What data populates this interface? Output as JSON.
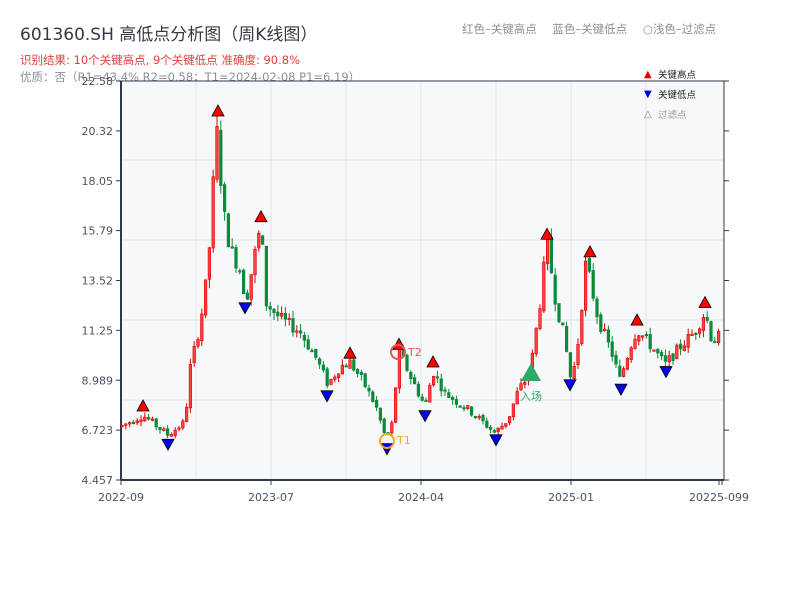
{
  "header": {
    "title": "601360.SH 高低点分析图（周K线图）",
    "result_line": "识别结果: 10个关键高点, 9个关键低点   准确度: 90.8%",
    "quality_line": "优质：否（R1=43.4%  R2=0.58；T1=2024-02-08 P1=6.19）"
  },
  "top_legend": {
    "red": "红色–关键高点",
    "blue": "蓝色–关键低点",
    "light": "○浅色–过滤点"
  },
  "plot_legend": [
    {
      "symbol": "▲",
      "label": "关键高点",
      "color": "#e00000"
    },
    {
      "symbol": "▼",
      "label": "关键低点",
      "color": "#0000e0"
    },
    {
      "symbol": "△",
      "label": "过滤点",
      "color": "#999999"
    }
  ],
  "colors": {
    "up": "#e00000",
    "down": "#0a8a3a",
    "high_marker": "#ff0000",
    "low_marker": "#0000ee",
    "t1": "#f5a623",
    "t2": "#e8554e",
    "entry": "#2eaa66",
    "grid": "#e1e4e8",
    "plot_bg": "#f7f8fa",
    "axis": "#2c3a4a"
  },
  "chart_data": {
    "type": "candlestick",
    "title": "601360.SH 高低点分析图（周K线图）",
    "yticks": [
      "22.58",
      "20.32",
      "18.05",
      "15.79",
      "13.52",
      "11.25",
      "8.989",
      "6.723",
      "4.457"
    ],
    "ylim": [
      4.457,
      22.58
    ],
    "xticks": [
      "2022-09",
      "2023-07",
      "2024-04",
      "2025-01",
      "2025-09"
    ],
    "x_overlap_label": "20225-099",
    "grid": true,
    "key_highs": [
      {
        "date": "2022-10",
        "price": 7.5
      },
      {
        "date": "2023-02",
        "price": 21.0
      },
      {
        "date": "2023-05",
        "price": 16.0
      },
      {
        "date": "2023-10",
        "price": 9.9
      },
      {
        "date": "2024-02",
        "price": 10.3
      },
      {
        "date": "2024-04",
        "price": 9.5
      },
      {
        "date": "2024-10",
        "price": 15.3
      },
      {
        "date": "2024-12",
        "price": 14.5
      },
      {
        "date": "2025-03",
        "price": 11.3
      },
      {
        "date": "2025-08",
        "price": 12.1
      }
    ],
    "key_lows": [
      {
        "date": "2022-11",
        "price": 6.4
      },
      {
        "date": "2023-06",
        "price": 12.6
      },
      {
        "date": "2023-09",
        "price": 8.6
      },
      {
        "date": "2024-01",
        "price": 6.19
      },
      {
        "date": "2024-04",
        "price": 7.6
      },
      {
        "date": "2024-08",
        "price": 6.5
      },
      {
        "date": "2025-01",
        "price": 9.0
      },
      {
        "date": "2025-02",
        "price": 8.8
      },
      {
        "date": "2025-05",
        "price": 9.6
      }
    ],
    "annotations": [
      {
        "label": "T1",
        "date": "2024-02-08",
        "price": 6.19
      },
      {
        "label": "T2",
        "date": "2024-02",
        "price": 10.3
      },
      {
        "label": "入场",
        "date": "2024-09",
        "price": 9.2
      }
    ]
  }
}
